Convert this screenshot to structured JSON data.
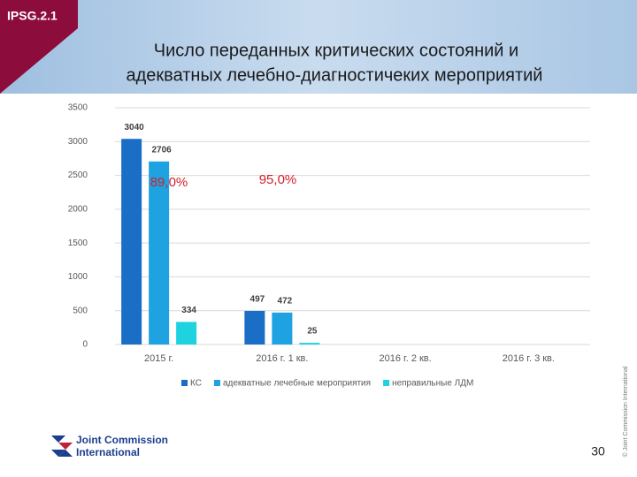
{
  "slide": {
    "tag": "IPSG.2.1",
    "title_lines": [
      "Число переданных критических состояний и",
      "адекватных лечебно-диагностичеких мероприятий"
    ],
    "logo_lines": [
      "Joint Commission",
      "International"
    ],
    "copyright": "© Joint Commission International",
    "page_number": "30"
  },
  "chart_data": {
    "type": "bar",
    "categories": [
      "2015 г.",
      "2016 г. 1 кв.",
      "2016 г. 2 кв.",
      "2016 г. 3 кв."
    ],
    "series": [
      {
        "name": "КС",
        "color": "#1b6ec6",
        "values": [
          3040,
          497,
          null,
          null
        ]
      },
      {
        "name": "адекватные лечебные мероприятия",
        "color": "#1ea2e2",
        "values": [
          2706,
          472,
          null,
          null
        ]
      },
      {
        "name": "неправильные ЛДМ",
        "color": "#1fd2e0",
        "values": [
          334,
          25,
          null,
          null
        ]
      }
    ],
    "annotations": [
      "89,0%",
      "95,0%"
    ],
    "ylim": [
      0,
      3500
    ],
    "yticks": [
      0,
      500,
      1000,
      1500,
      2000,
      2500,
      3000,
      3500
    ],
    "grid": true
  }
}
